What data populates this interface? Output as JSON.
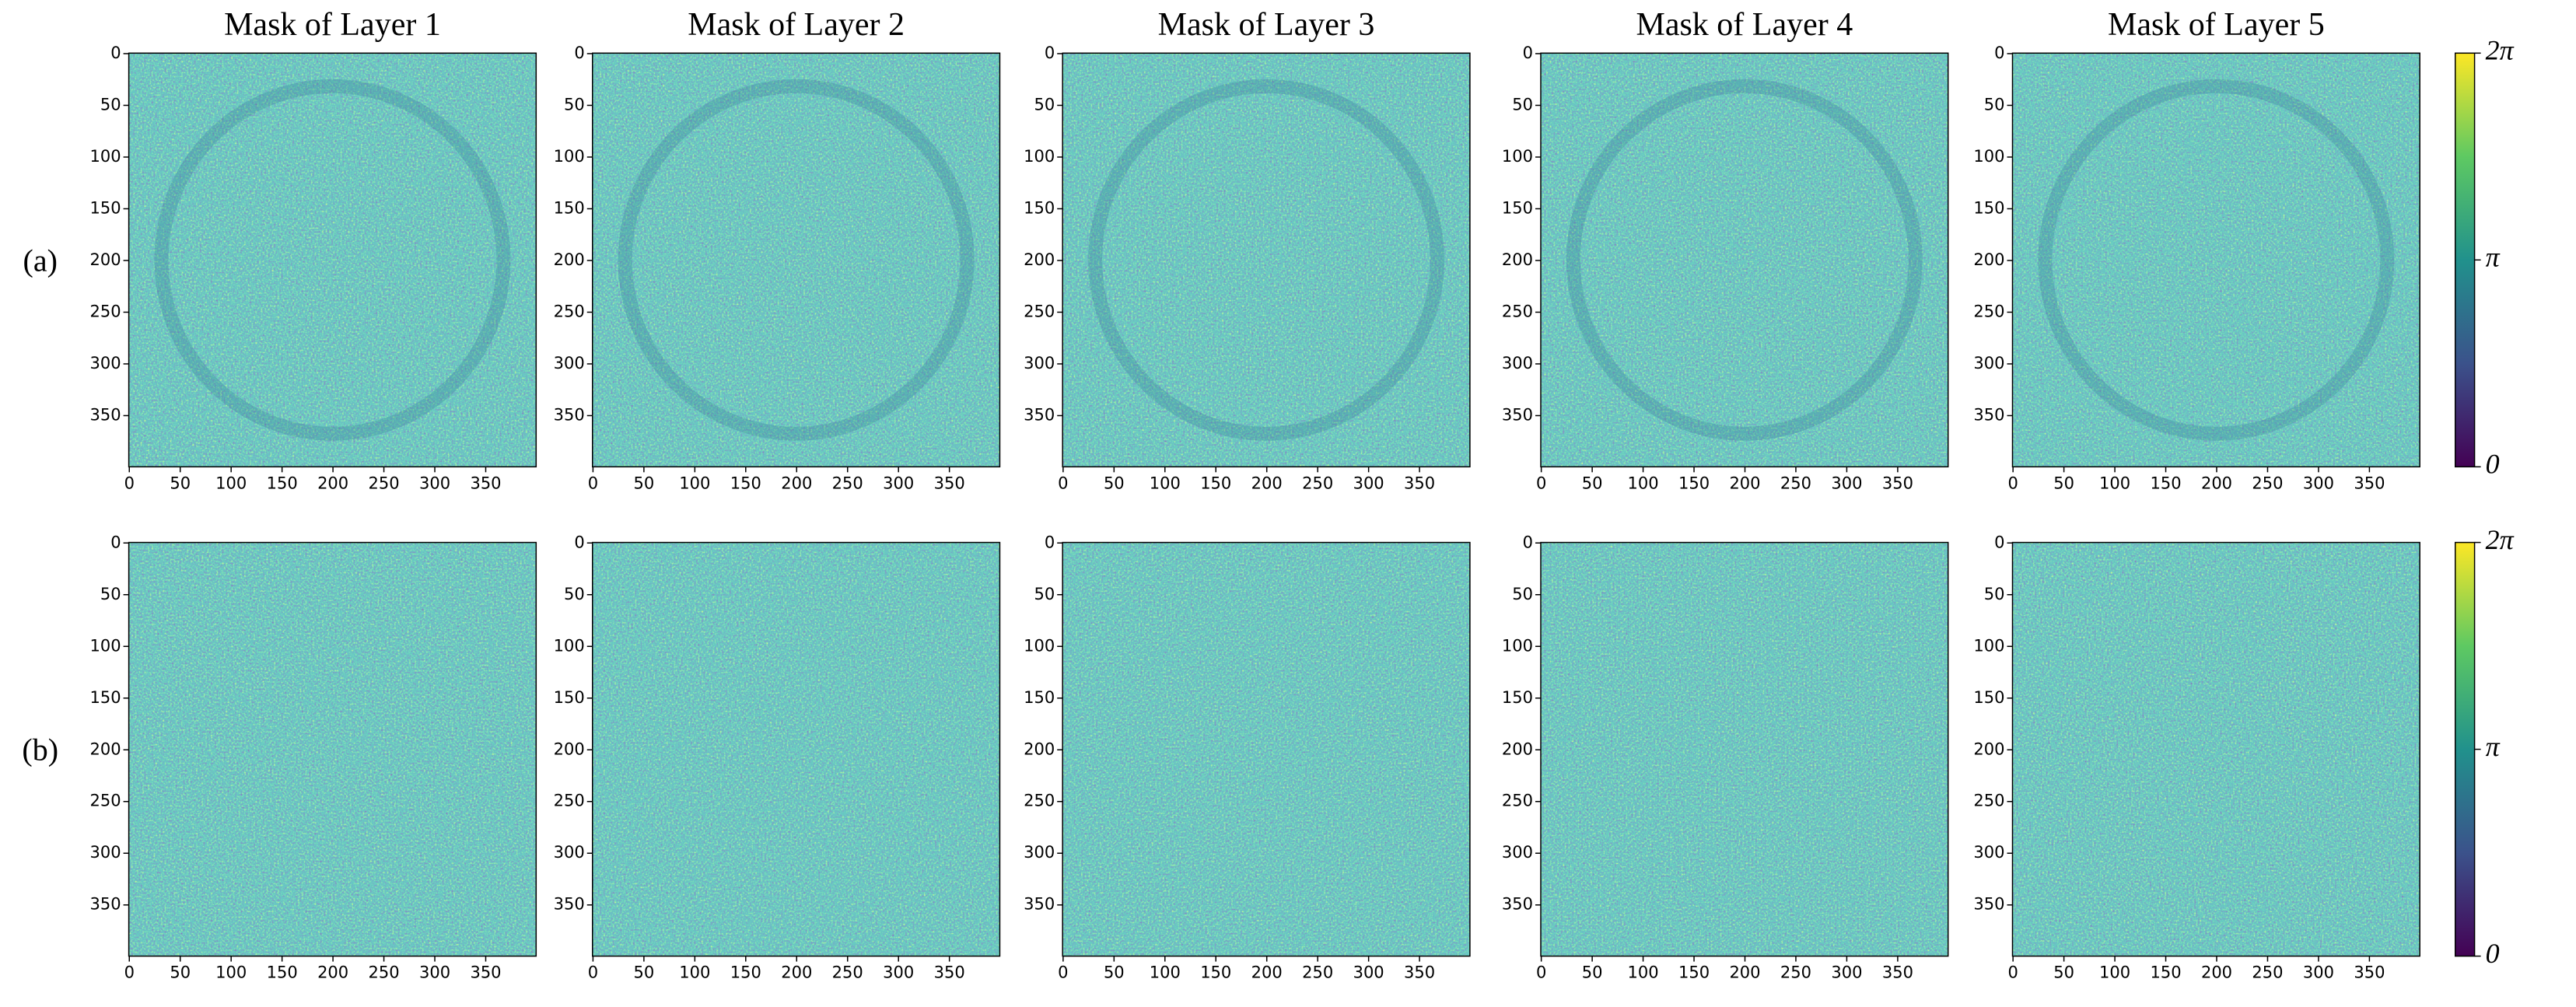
{
  "panel_titles": [
    "Mask of Layer 1",
    "Mask of Layer 2",
    "Mask of Layer 3",
    "Mask of Layer 4",
    "Mask of Layer 5"
  ],
  "row_labels": [
    "(a)",
    "(b)"
  ],
  "axes": {
    "type": "heatmap",
    "xlim": [
      0,
      400
    ],
    "ylim": [
      0,
      400
    ],
    "xticks": [
      0,
      50,
      100,
      150,
      200,
      250,
      300,
      350
    ],
    "yticks": [
      0,
      50,
      100,
      150,
      200,
      250,
      300,
      350
    ]
  },
  "colorbar": {
    "lim": [
      0,
      6.2832
    ],
    "ticks": [
      {
        "value": 0,
        "label": "0"
      },
      {
        "value": 3.1416,
        "label": "π"
      },
      {
        "value": 6.2832,
        "label": "2π"
      }
    ]
  }
}
